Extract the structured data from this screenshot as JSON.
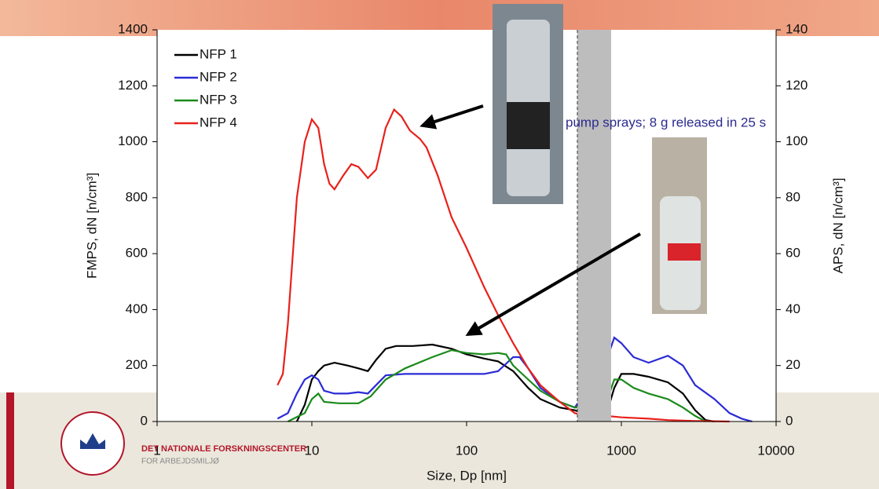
{
  "chart_data": {
    "type": "line",
    "x_label": "Size, Dp [nm]",
    "y_label": "FMPS, dN [n/cm³]",
    "y2_label": "APS, dN [n/cm³]",
    "log_x": true,
    "xlim": [
      1,
      10000
    ],
    "xticks": [
      1,
      10,
      100,
      1000,
      10000
    ],
    "ylim": [
      0,
      1400
    ],
    "yticks": [
      0,
      200,
      400,
      600,
      800,
      1000,
      1200,
      1400
    ],
    "y2lim": [
      0,
      140
    ],
    "y2ticks": [
      0,
      20,
      40,
      60,
      80,
      100,
      120,
      140
    ],
    "legend": "top-left",
    "annotation": "pump sprays; 8 g released in 25 s",
    "series": [
      {
        "name": "NFP 1",
        "color": "#000000",
        "x": [
          8,
          9,
          10,
          11,
          12,
          14,
          17,
          20,
          23,
          26,
          30,
          35,
          45,
          60,
          80,
          100,
          130,
          160,
          200,
          250,
          300,
          400,
          500,
          780,
          900,
          1000,
          1200,
          1500,
          2000,
          2500,
          3000,
          3500,
          4000
        ],
        "values": [
          0,
          60,
          150,
          180,
          200,
          210,
          200,
          190,
          180,
          220,
          260,
          270,
          270,
          275,
          260,
          240,
          225,
          215,
          180,
          120,
          80,
          50,
          40,
          5,
          120,
          170,
          170,
          160,
          140,
          100,
          40,
          5,
          0
        ]
      },
      {
        "name": "NFP 2",
        "color": "#2b2bd6",
        "x": [
          6,
          7,
          8,
          9,
          10,
          11,
          12,
          14,
          17,
          20,
          23,
          26,
          30,
          40,
          60,
          100,
          130,
          160,
          200,
          220,
          250,
          300,
          400,
          500,
          780,
          900,
          1000,
          1200,
          1500,
          2000,
          2500,
          3000,
          4000,
          5000,
          6000,
          7000
        ],
        "values": [
          10,
          30,
          100,
          150,
          165,
          150,
          110,
          100,
          100,
          105,
          100,
          130,
          165,
          170,
          170,
          170,
          170,
          180,
          230,
          230,
          190,
          120,
          70,
          50,
          200,
          300,
          280,
          230,
          210,
          235,
          200,
          130,
          80,
          30,
          10,
          0
        ]
      },
      {
        "name": "NFP 3",
        "color": "#1a8a1a",
        "x": [
          7,
          9,
          10,
          11,
          12,
          15,
          20,
          24,
          30,
          40,
          60,
          80,
          100,
          130,
          160,
          180,
          200,
          250,
          300,
          400,
          500,
          780,
          900,
          1000,
          1200,
          1500,
          2000,
          2500,
          3000,
          3500
        ],
        "values": [
          0,
          30,
          80,
          100,
          70,
          65,
          65,
          90,
          150,
          190,
          230,
          255,
          245,
          240,
          245,
          240,
          200,
          150,
          110,
          70,
          50,
          50,
          150,
          150,
          120,
          100,
          80,
          50,
          20,
          0
        ]
      },
      {
        "name": "NFP 4",
        "color": "#e8211b",
        "x": [
          6,
          6.5,
          7,
          8,
          9,
          10,
          11,
          12,
          13,
          14,
          16,
          18,
          20,
          23,
          26,
          30,
          34,
          38,
          43,
          50,
          55,
          65,
          80,
          100,
          130,
          160,
          200,
          250,
          300,
          400,
          500,
          600,
          800,
          1000,
          1500,
          2000,
          3000,
          5000
        ],
        "values": [
          130,
          170,
          350,
          800,
          1000,
          1080,
          1050,
          920,
          850,
          830,
          880,
          920,
          910,
          870,
          900,
          1050,
          1115,
          1090,
          1040,
          1010,
          980,
          880,
          730,
          620,
          480,
          380,
          280,
          190,
          130,
          70,
          30,
          20,
          20,
          15,
          10,
          5,
          2,
          0
        ]
      }
    ]
  },
  "footer": {
    "org_line1": "DET NATIONALE FORSKNINGSCENTER",
    "org_line2": "FOR ARBEJDSMILJØ"
  }
}
